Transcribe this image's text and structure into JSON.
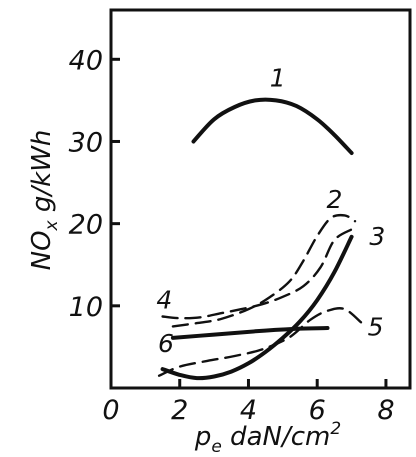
{
  "chart_data": {
    "type": "line",
    "title": "",
    "xlabel": "p_e daN/cm²",
    "ylabel": "NOx g/kWh",
    "xlabel_parts": {
      "main": "p",
      "sub": "e",
      "rest": " daN/cm",
      "sup": "2"
    },
    "ylabel_parts": {
      "main": "NO",
      "sub": "x",
      "rest": " g/kWh"
    },
    "xlim": [
      0,
      8.7
    ],
    "ylim": [
      0,
      46
    ],
    "x_ticks": [
      {
        "value": 0,
        "label": "0"
      },
      {
        "value": 2,
        "label": "2"
      },
      {
        "value": 4,
        "label": "4"
      },
      {
        "value": 6,
        "label": "6"
      },
      {
        "value": 8,
        "label": "8"
      }
    ],
    "y_ticks": [
      {
        "value": 10,
        "label": "10"
      },
      {
        "value": 20,
        "label": "20"
      },
      {
        "value": 30,
        "label": "30"
      },
      {
        "value": 40,
        "label": "40"
      }
    ],
    "grid": false,
    "series": [
      {
        "label": "1",
        "dash": "solid",
        "x": [
          2.4,
          3.0,
          3.6,
          4.2,
          4.8,
          5.4,
          6.0,
          6.5,
          7.0
        ],
        "y": [
          30.0,
          32.7,
          34.2,
          35.0,
          35.0,
          34.3,
          32.7,
          30.8,
          28.6
        ]
      },
      {
        "label": "2",
        "dash": "dashed",
        "x": [
          1.8,
          2.5,
          3.2,
          4.0,
          4.6,
          5.2,
          5.6,
          6.0,
          6.4,
          6.8,
          7.1
        ],
        "y": [
          7.5,
          7.9,
          8.4,
          9.6,
          11.0,
          13.0,
          15.5,
          18.5,
          20.7,
          21.0,
          20.3
        ]
      },
      {
        "label": "3",
        "dash": "solid",
        "x": [
          1.5,
          2.0,
          2.5,
          3.0,
          3.5,
          4.0,
          4.5,
          5.0,
          5.5,
          6.0,
          6.5,
          7.0
        ],
        "y": [
          2.3,
          1.6,
          1.2,
          1.4,
          2.0,
          3.0,
          4.4,
          6.1,
          8.1,
          10.7,
          14.1,
          18.4
        ]
      },
      {
        "label": "4",
        "dash": "dashed",
        "x": [
          1.5,
          2.0,
          2.6,
          3.2,
          3.8,
          4.4,
          5.0,
          5.6,
          6.1,
          6.5,
          7.0
        ],
        "y": [
          8.7,
          8.5,
          8.6,
          9.1,
          9.6,
          10.2,
          11.1,
          12.4,
          14.7,
          18.0,
          19.3
        ]
      },
      {
        "label": "5",
        "dash": "dashed",
        "x": [
          1.4,
          2.0,
          2.8,
          3.6,
          4.4,
          5.2,
          5.8,
          6.3,
          6.8,
          7.3
        ],
        "y": [
          1.5,
          2.6,
          3.3,
          3.9,
          4.7,
          6.2,
          8.3,
          9.4,
          9.6,
          7.9
        ]
      },
      {
        "label": "6",
        "dash": "solid",
        "x": [
          1.8,
          3.0,
          4.2,
          5.4,
          6.3
        ],
        "y": [
          6.1,
          6.5,
          6.9,
          7.2,
          7.3
        ]
      }
    ],
    "curve_labels": [
      {
        "label": "1",
        "x": 4.85,
        "y": 37.8
      },
      {
        "label": "2",
        "x": 6.5,
        "y": 23.0
      },
      {
        "label": "3",
        "x": 7.75,
        "y": 18.5
      },
      {
        "label": "4",
        "x": 1.55,
        "y": 10.8
      },
      {
        "label": "5",
        "x": 7.7,
        "y": 7.5
      },
      {
        "label": "6",
        "x": 1.6,
        "y": 5.5
      }
    ]
  }
}
